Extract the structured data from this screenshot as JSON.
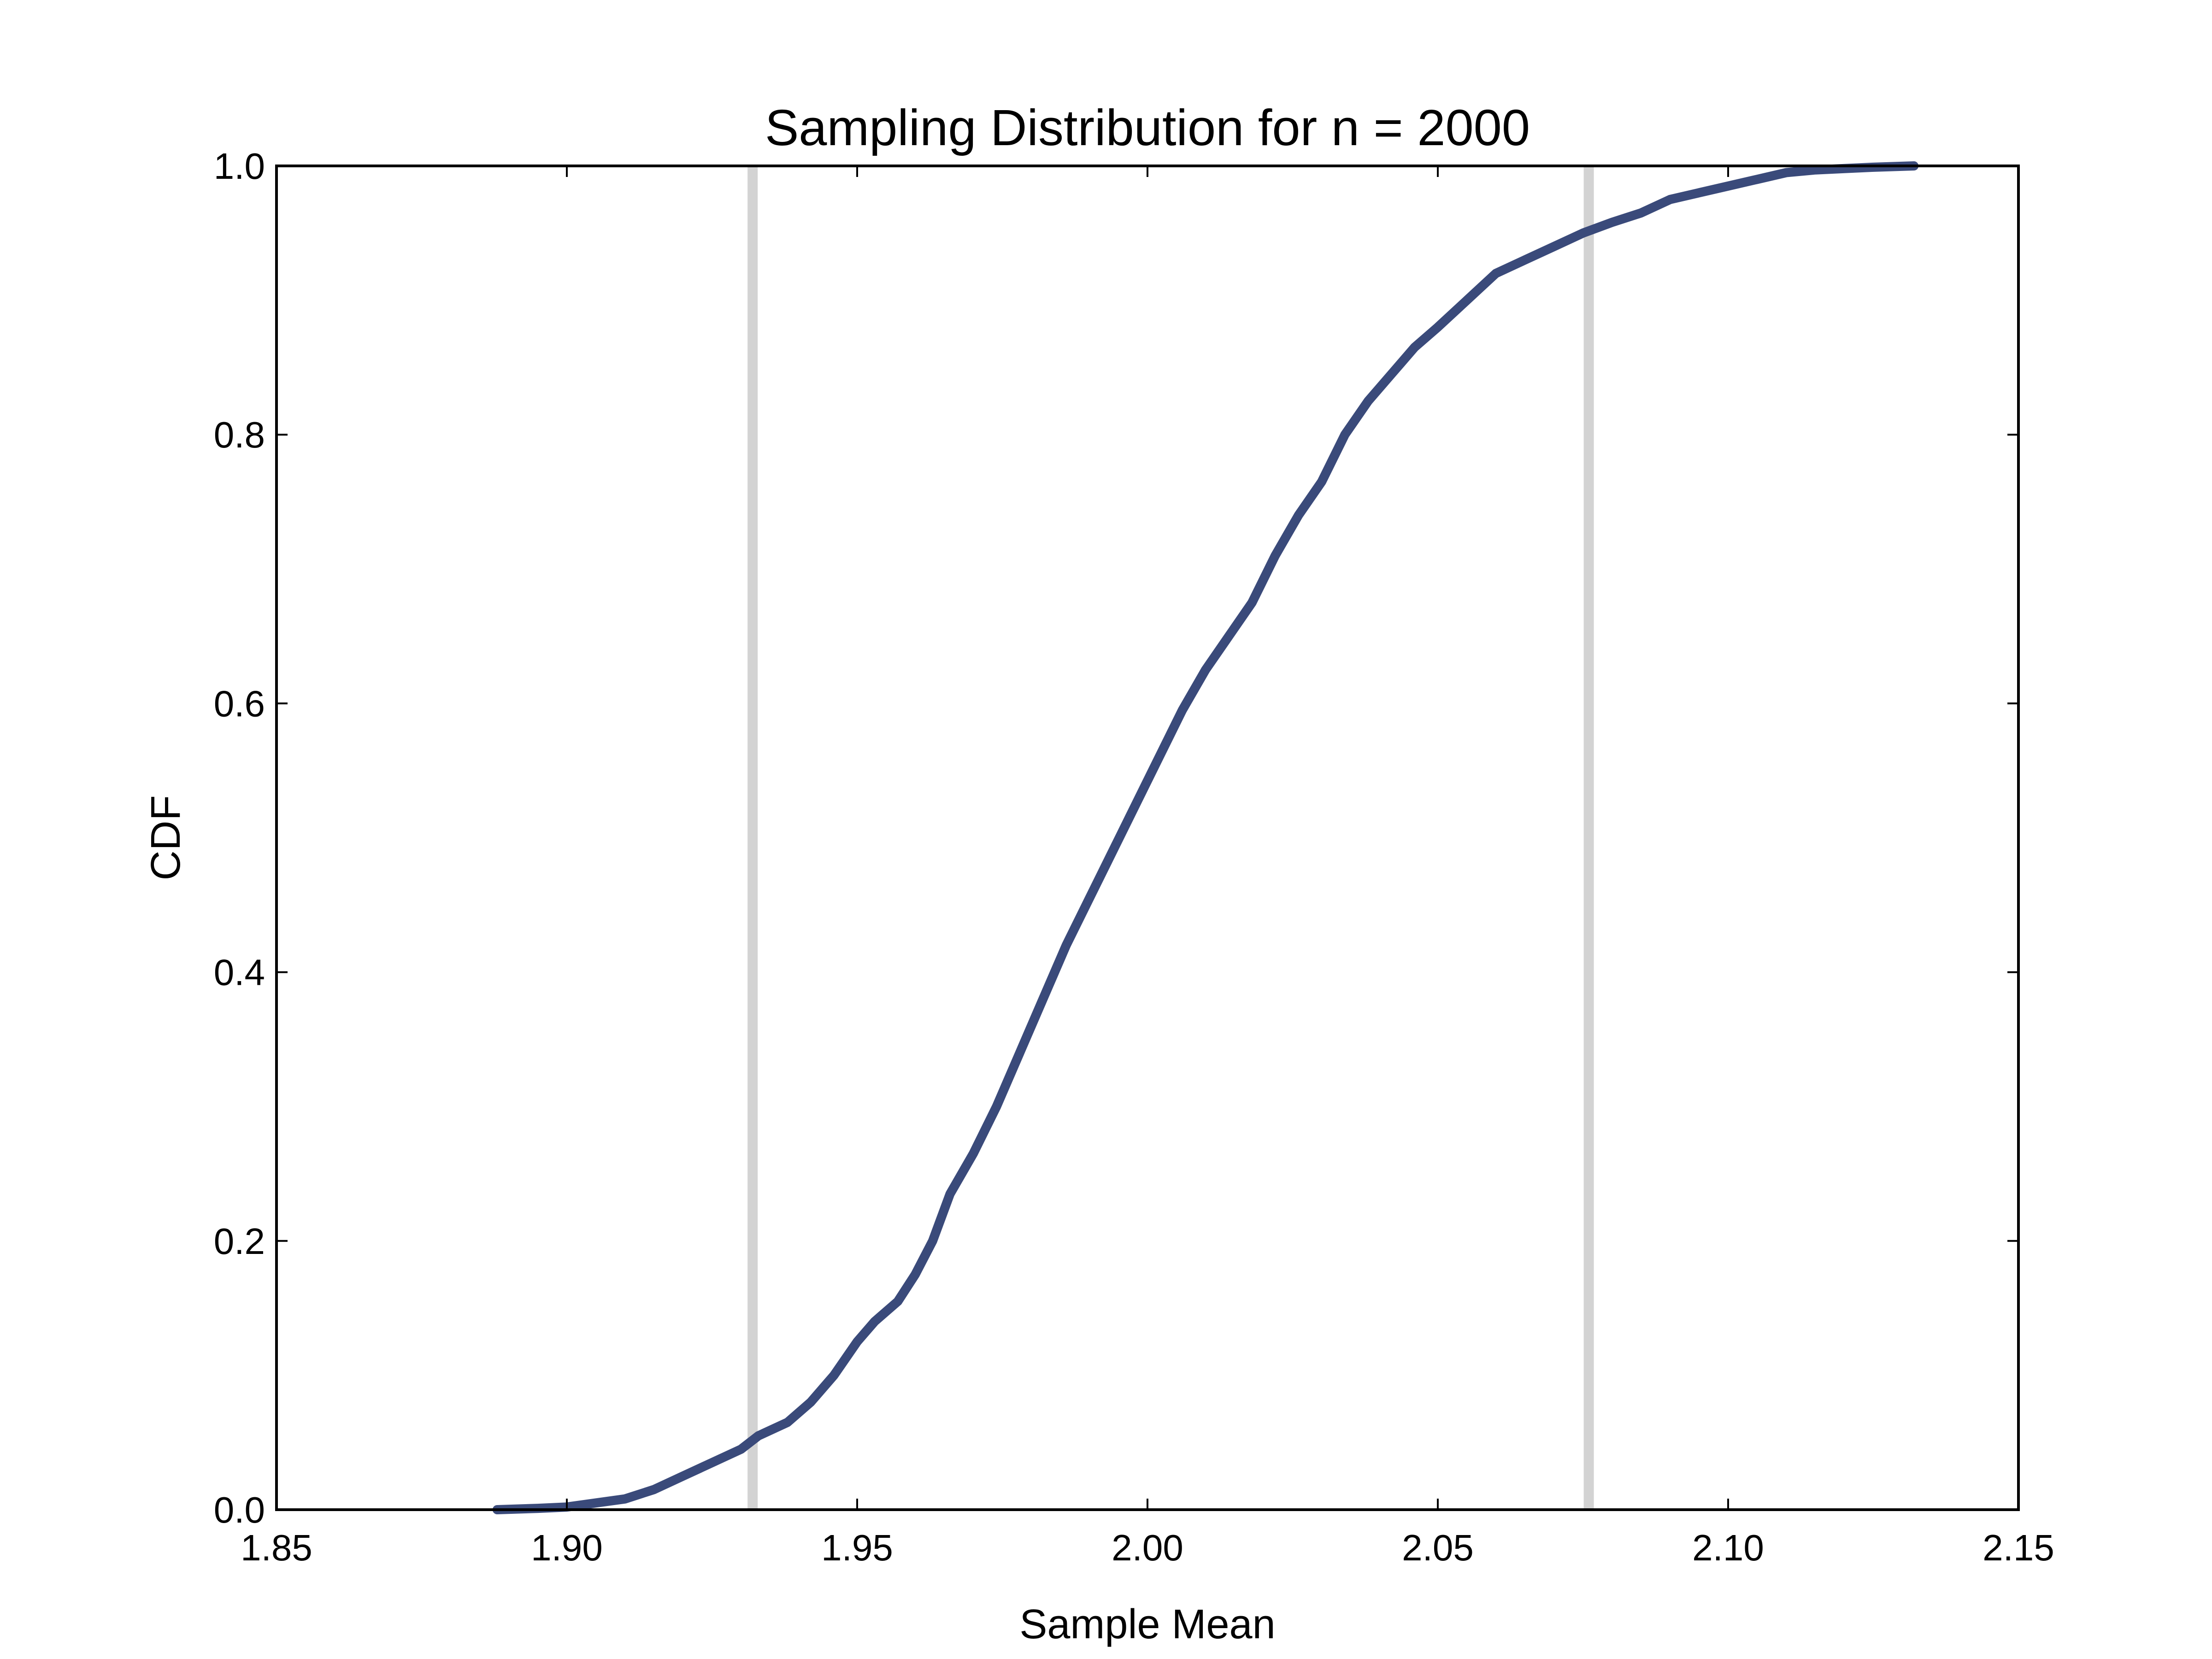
{
  "chart_data": {
    "type": "line",
    "title": "Sampling Distribution for n = 2000",
    "xlabel": "Sample Mean",
    "ylabel": "CDF",
    "xlim": [
      1.85,
      2.15
    ],
    "ylim": [
      0.0,
      1.0
    ],
    "grid": false,
    "x_ticks": [
      1.85,
      1.9,
      1.95,
      2.0,
      2.05,
      2.1,
      2.15
    ],
    "x_tick_labels": [
      "1.85",
      "1.90",
      "1.95",
      "2.00",
      "2.05",
      "2.10",
      "2.15"
    ],
    "y_ticks": [
      0.0,
      0.2,
      0.4,
      0.6,
      0.8,
      1.0
    ],
    "y_tick_labels": [
      "0.0",
      "0.2",
      "0.4",
      "0.6",
      "0.8",
      "1.0"
    ],
    "vertical_lines": [
      1.932,
      2.076
    ],
    "series": [
      {
        "color": "#3a4a7a",
        "x": [
          1.888,
          1.895,
          1.9,
          1.905,
          1.91,
          1.915,
          1.92,
          1.925,
          1.93,
          1.933,
          1.938,
          1.942,
          1.946,
          1.95,
          1.953,
          1.957,
          1.96,
          1.963,
          1.966,
          1.97,
          1.974,
          1.978,
          1.982,
          1.986,
          1.99,
          1.994,
          1.998,
          2.002,
          2.006,
          2.01,
          2.014,
          2.018,
          2.022,
          2.026,
          2.03,
          2.034,
          2.038,
          2.042,
          2.046,
          2.05,
          2.055,
          2.06,
          2.065,
          2.07,
          2.075,
          2.08,
          2.085,
          2.09,
          2.095,
          2.1,
          2.105,
          2.11,
          2.115,
          2.12,
          2.125,
          2.132
        ],
        "y": [
          0.0,
          0.001,
          0.002,
          0.005,
          0.008,
          0.015,
          0.025,
          0.035,
          0.045,
          0.055,
          0.065,
          0.08,
          0.1,
          0.125,
          0.14,
          0.155,
          0.175,
          0.2,
          0.235,
          0.265,
          0.3,
          0.34,
          0.38,
          0.42,
          0.455,
          0.49,
          0.525,
          0.56,
          0.595,
          0.625,
          0.65,
          0.675,
          0.71,
          0.74,
          0.765,
          0.8,
          0.825,
          0.845,
          0.865,
          0.88,
          0.9,
          0.92,
          0.93,
          0.94,
          0.95,
          0.958,
          0.965,
          0.975,
          0.98,
          0.985,
          0.99,
          0.995,
          0.997,
          0.998,
          0.999,
          1.0
        ]
      }
    ]
  },
  "colors": {
    "series_line": "#3a4a7a",
    "reference_line": "#d3d3d3",
    "axis": "#000000"
  }
}
